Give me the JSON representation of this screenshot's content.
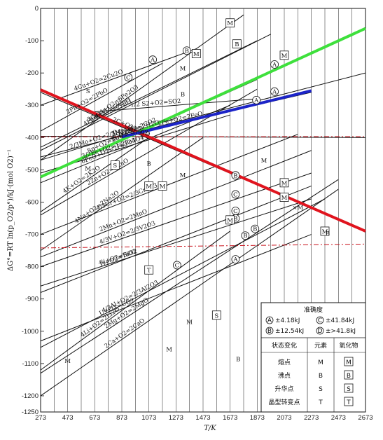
{
  "chart_data": {
    "type": "line",
    "xlabel": "T/K",
    "ylabel": "ΔG°=RT ln(p_O2/p°)/kJ·(mol O2)⁻¹",
    "xlim": [
      273,
      2673
    ],
    "ylim": [
      -1250,
      0
    ],
    "x_ticks": [
      273,
      473,
      673,
      873,
      1073,
      1273,
      1473,
      1673,
      1873,
      2073,
      2273,
      2473,
      2673
    ],
    "y_ticks": [
      0,
      -100,
      -200,
      -300,
      -400,
      -500,
      -600,
      -700,
      -800,
      -900,
      -1000,
      -1100,
      -1200,
      -1250
    ],
    "series": [
      {
        "label": "4Cu+O2=2Cu2O",
        "accuracy": "A",
        "points": [
          [
            273,
            -300
          ],
          [
            1423,
            -125
          ]
        ]
      },
      {
        "label": "4Fe3O4+O2=6Fe2O3",
        "accuracy": "B",
        "points": [
          [
            273,
            -470
          ],
          [
            1773,
            -20
          ]
        ]
      },
      {
        "label": "2Pb+O2=2PbO",
        "accuracy": "C",
        "points": [
          [
            273,
            -380
          ],
          [
            1173,
            -170
          ]
        ]
      },
      {
        "label": "2Ni+O2=2NiO",
        "accuracy": "",
        "points": [
          [
            273,
            -440
          ],
          [
            1973,
            -80
          ]
        ]
      },
      {
        "label": "2Co+O2=2CoO",
        "accuracy": "",
        "points": [
          [
            273,
            -430
          ],
          [
            1873,
            -100
          ]
        ]
      },
      {
        "label": "1/2 S2+O2=SO2",
        "accuracy": "",
        "points": [
          [
            673,
            -320
          ],
          [
            1873,
            -280
          ]
        ]
      },
      {
        "label": "2CO+O2=2CO2",
        "accuracy": "A",
        "points": [
          [
            273,
            -520
          ],
          [
            2673,
            -60
          ]
        ]
      },
      {
        "label": "2H2+O2=2H2O",
        "accuracy": "A",
        "points": [
          [
            273,
            -460
          ],
          [
            2673,
            -200
          ]
        ]
      },
      {
        "label": "2Fe+O2=2FeO",
        "accuracy": "A",
        "points": [
          [
            823,
            -400
          ],
          [
            2273,
            -260
          ]
        ]
      },
      {
        "label": "6FeO+O2=2Fe3O4",
        "accuracy": "",
        "points": [
          [
            273,
            -540
          ],
          [
            1673,
            -300
          ]
        ]
      },
      {
        "label": "Sn+O2=SnO2",
        "accuracy": "",
        "points": [
          [
            273,
            -520
          ],
          [
            1873,
            -220
          ]
        ]
      },
      {
        "label": "2C+O2=2CO",
        "accuracy": "",
        "points": [
          [
            273,
            -260
          ],
          [
            2673,
            -690
          ]
        ]
      },
      {
        "label": "C+O2=CO2",
        "accuracy": "",
        "points": [
          [
            273,
            -396
          ],
          [
            2673,
            -400
          ]
        ]
      },
      {
        "label": "3/2Fe+O2=1/2Fe3O4",
        "accuracy": "",
        "points": [
          [
            273,
            -510
          ],
          [
            1673,
            -330
          ]
        ]
      },
      {
        "label": "2/3Mo+O2=2/3MoO3",
        "accuracy": "",
        "points": [
          [
            273,
            -470
          ],
          [
            1273,
            -340
          ]
        ]
      },
      {
        "label": "4/3Cr+O2=2/3Cr2O3",
        "accuracy": "",
        "points": [
          [
            273,
            -700
          ],
          [
            2173,
            -390
          ]
        ]
      },
      {
        "label": "4K+O2=2K2O",
        "accuracy": "",
        "points": [
          [
            273,
            -630
          ],
          [
            1073,
            -400
          ]
        ]
      },
      {
        "label": "2Zn+O2=2ZnO",
        "accuracy": "",
        "points": [
          [
            273,
            -640
          ],
          [
            1873,
            -250
          ]
        ]
      },
      {
        "label": "4Na+O2=2Na2O",
        "accuracy": "",
        "points": [
          [
            273,
            -750
          ],
          [
            1473,
            -400
          ]
        ]
      },
      {
        "label": "2Mn+O2=2MnO",
        "accuracy": "B",
        "points": [
          [
            273,
            -770
          ],
          [
            2273,
            -440
          ]
        ]
      },
      {
        "label": "Ti+O2=TiO2",
        "accuracy": "C",
        "points": [
          [
            273,
            -880
          ],
          [
            2273,
            -550
          ]
        ]
      },
      {
        "label": "4/3V+O2=2/3V2O3",
        "accuracy": "C",
        "points": [
          [
            273,
            -800
          ],
          [
            2273,
            -510
          ]
        ]
      },
      {
        "label": "Si+O2=SiO2",
        "accuracy": "B",
        "points": [
          [
            273,
            -860
          ],
          [
            2273,
            -590
          ]
        ]
      },
      {
        "label": "4/3Al+O2=2/3Al2O3",
        "accuracy": "B",
        "points": [
          [
            273,
            -1050
          ],
          [
            2373,
            -590
          ]
        ]
      },
      {
        "label": "U+O2=UO2",
        "accuracy": "A",
        "points": [
          [
            273,
            -1030
          ],
          [
            2273,
            -700
          ]
        ]
      },
      {
        "label": "4Li+O2=2Li2O",
        "accuracy": "C",
        "points": [
          [
            273,
            -1120
          ],
          [
            1673,
            -690
          ]
        ]
      },
      {
        "label": "2Mg+O2=2MgO",
        "accuracy": "B",
        "points": [
          [
            273,
            -1130
          ],
          [
            2473,
            -530
          ]
        ]
      },
      {
        "label": "2Ca+O2=2CaO",
        "accuracy": "",
        "points": [
          [
            273,
            -1200
          ],
          [
            2473,
            -560
          ]
        ]
      }
    ],
    "overlays": [
      {
        "color": "#e0141e",
        "width": 4,
        "dash": "",
        "points": [
          [
            273,
            -252
          ],
          [
            2673,
            -690
          ]
        ]
      },
      {
        "color": "#c8101a",
        "width": 1,
        "dash": "7 3 2 3",
        "points": [
          [
            273,
            -398
          ],
          [
            2673,
            -397
          ]
        ]
      },
      {
        "color": "#c8101a",
        "width": 1,
        "dash": "7 3 2 3",
        "points": [
          [
            273,
            -742
          ],
          [
            2673,
            -730
          ]
        ]
      },
      {
        "color": "#3ee03c",
        "width": 4,
        "dash": "",
        "points": [
          [
            273,
            -522
          ],
          [
            2673,
            -62
          ]
        ]
      },
      {
        "color": "#1c24c8",
        "width": 4,
        "dash": "",
        "points": [
          [
            873,
            -398
          ],
          [
            2273,
            -255
          ]
        ]
      }
    ],
    "point_marks": [
      {
        "text": "M",
        "boxed": true,
        "x": 1673,
        "y": -45
      },
      {
        "text": "B",
        "boxed": true,
        "x": 1723,
        "y": -110
      },
      {
        "text": "M",
        "boxed": true,
        "x": 1423,
        "y": -140
      },
      {
        "text": "M",
        "boxed": true,
        "x": 2073,
        "y": -145
      },
      {
        "text": "S",
        "boxed": true,
        "x": 823,
        "y": -485
      },
      {
        "text": "M",
        "boxed": true,
        "x": 1073,
        "y": -550
      },
      {
        "text": "M",
        "boxed": true,
        "x": 1173,
        "y": -550
      },
      {
        "text": "M",
        "boxed": true,
        "x": 2073,
        "y": -540
      },
      {
        "text": "M",
        "boxed": true,
        "x": 2073,
        "y": -585
      },
      {
        "text": "M",
        "boxed": true,
        "x": 1673,
        "y": -655
      },
      {
        "text": "T",
        "boxed": true,
        "x": 1073,
        "y": -810
      },
      {
        "text": "S",
        "boxed": true,
        "x": 1573,
        "y": -950
      },
      {
        "text": "M",
        "boxed": true,
        "x": 2373,
        "y": -690
      },
      {
        "text": "B",
        "boxed": false,
        "x": 1073,
        "y": -480
      },
      {
        "text": "M",
        "boxed": false,
        "x": 1323,
        "y": -515
      },
      {
        "text": "M",
        "boxed": false,
        "x": 1923,
        "y": -470
      },
      {
        "text": "×M",
        "boxed": false,
        "x": 2173,
        "y": -615
      },
      {
        "text": "B",
        "boxed": false,
        "x": 1733,
        "y": -1085
      },
      {
        "text": "M",
        "boxed": false,
        "x": 1373,
        "y": -970
      },
      {
        "text": "M",
        "boxed": false,
        "x": 1223,
        "y": -1055
      },
      {
        "text": "M",
        "boxed": false,
        "x": 473,
        "y": -1090
      },
      {
        "text": "B",
        "boxed": false,
        "x": 2393,
        "y": -695
      },
      {
        "text": "M",
        "boxed": false,
        "x": 1323,
        "y": -185
      },
      {
        "text": "B",
        "boxed": false,
        "x": 1323,
        "y": -265
      },
      {
        "text": "M",
        "boxed": false,
        "x": 623,
        "y": -495
      },
      {
        "text": "S",
        "boxed": false,
        "x": 623,
        "y": -255
      }
    ],
    "legend": {
      "title": "准确度",
      "accuracy": [
        {
          "letter": "A",
          "text": "±4.18kJ"
        },
        {
          "letter": "C",
          "text": "±41.84kJ"
        },
        {
          "letter": "B",
          "text": "±12.54kJ"
        },
        {
          "letter": "D",
          "text": "±>41.8kJ"
        }
      ],
      "headers": [
        "状态变化",
        "元素",
        "氧化物"
      ],
      "rows": [
        {
          "change": "熔点",
          "element": "M",
          "oxide": "M"
        },
        {
          "change": "沸点",
          "element": "B",
          "oxide": "B"
        },
        {
          "change": "升华点",
          "element": "S",
          "oxide": "S"
        },
        {
          "change": "晶型转变点",
          "element": "T",
          "oxide": "T"
        }
      ]
    }
  }
}
